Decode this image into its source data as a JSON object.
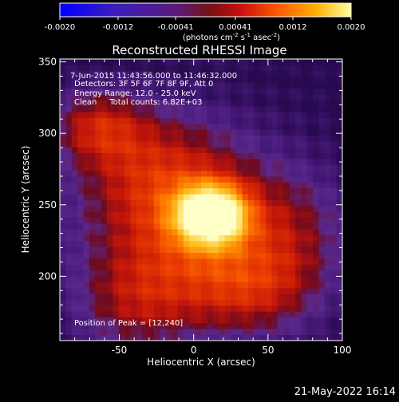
{
  "colorbar": {
    "tick_labels": [
      "-0.0020",
      "-0.0012",
      "-0.00041",
      "0.00041",
      "0.0012",
      "0.0020"
    ],
    "tick_values": [
      -0.002,
      -0.0012,
      -0.00041,
      0.00041,
      0.0012,
      0.002
    ],
    "range": [
      -0.002,
      0.002
    ],
    "units_html": "(photons cm<tspan baseline-shift='super' font-size='7'>-2</tspan> s<tspan baseline-shift='super' font-size='7'>-1</tspan> asec<tspan baseline-shift='super' font-size='7'>-2</tspan>)"
  },
  "chart_data": {
    "type": "heatmap",
    "title": "Reconstructed RHESSI Image",
    "xlabel": "Heliocentric X (arcsec)",
    "ylabel": "Heliocentric Y (arcsec)",
    "xlim": [
      -90,
      100
    ],
    "ylim": [
      155,
      352
    ],
    "x_ticks": [
      -50,
      0,
      50,
      100
    ],
    "y_ticks": [
      200,
      250,
      300,
      350
    ],
    "annotations": {
      "time_range": "7-Jun-2015 11:43:56.000 to 11:46:32.000",
      "detectors": "Detectors: 3F 5F 6F 7F 8F 9F, Att 0",
      "energy": "Energy Range: 12.0 - 25.0 keV",
      "clean": "Clean     Total counts: 6.82E+03",
      "peak": "Position of Peak = [12,240]"
    },
    "peak": [
      12,
      240
    ],
    "sources": [
      {
        "x": 12,
        "y": 243,
        "amp": 0.95,
        "sx": 16,
        "sy": 14
      },
      {
        "x": 0,
        "y": 232,
        "amp": 0.45,
        "sx": 48,
        "sy": 42
      },
      {
        "x": -65,
        "y": 305,
        "amp": 0.3,
        "sx": 22,
        "sy": 18
      },
      {
        "x": -30,
        "y": 280,
        "amp": 0.22,
        "sx": 35,
        "sy": 30
      },
      {
        "x": 40,
        "y": 190,
        "amp": 0.25,
        "sx": 30,
        "sy": 22
      },
      {
        "x": -40,
        "y": 180,
        "amp": 0.22,
        "sx": 28,
        "sy": 24
      },
      {
        "x": 70,
        "y": 230,
        "amp": 0.15,
        "sx": 25,
        "sy": 30
      }
    ]
  },
  "footer": {
    "date": "21-May-2022 16:14"
  }
}
